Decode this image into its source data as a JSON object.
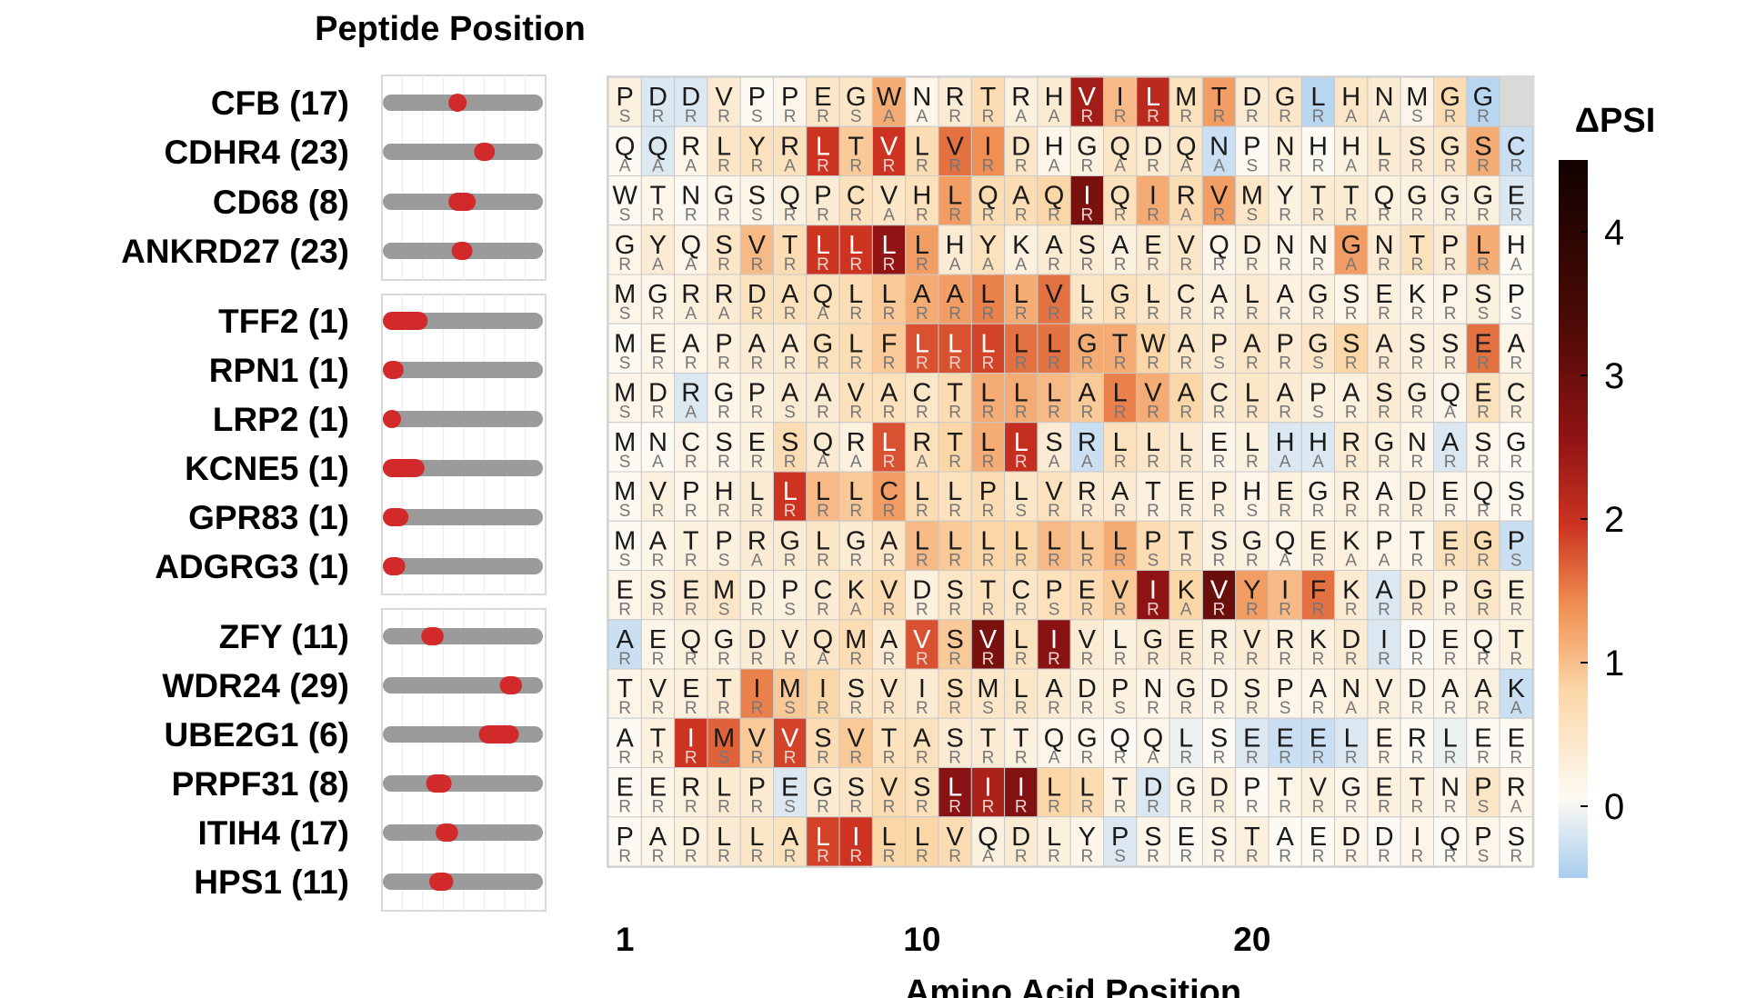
{
  "chart_data": {
    "type": "heatmap",
    "title": "Peptide Position",
    "xlabel": "Amino Acid Position",
    "x_ticks": [
      "1",
      "10",
      "20"
    ],
    "x_tick_positions": [
      1,
      10,
      20
    ],
    "colorbar": {
      "label": "ΔPSI",
      "ticks": [
        "0",
        "1",
        "2",
        "3",
        "4"
      ],
      "range": [
        -0.5,
        4.5
      ]
    },
    "panels": [
      {
        "rows": [
          {
            "label": "CFB (17)",
            "pos": [
              0.41,
              0.52
            ],
            "seq": "PDDVPPEGWNRTRHVILMTDGLHNMGG",
            "sub": "SRRRSRRSAARRAARRRRRRRRAASRR",
            "v": [
              0.2,
              -0.2,
              -0.2,
              0.3,
              0.0,
              0.1,
              0.4,
              0.4,
              1.0,
              0.1,
              0.3,
              0.6,
              0.2,
              0.3,
              2.3,
              0.9,
              2.0,
              0.5,
              1.1,
              0.3,
              0.4,
              -0.4,
              0.4,
              0.3,
              0.1,
              0.6,
              -0.4
            ]
          },
          {
            "label": "CDHR4 (23)",
            "pos": [
              0.57,
              0.7
            ],
            "seq": "QQRLYRLTVLVIDHGQDQNPNHHLSGSC",
            "sub": "AAARRARRRRRRRARARAASRRARRRRR",
            "v": [
              0.0,
              -0.2,
              0.1,
              0.4,
              0.5,
              0.5,
              1.8,
              0.8,
              1.8,
              0.6,
              1.4,
              1.2,
              0.4,
              0.1,
              0.2,
              0.4,
              0.3,
              0.4,
              -0.3,
              0.0,
              0.2,
              0.0,
              0.2,
              0.3,
              0.3,
              0.4,
              1.0,
              -0.3
            ]
          },
          {
            "label": "CD68 (8)",
            "pos": [
              0.41,
              0.58
            ],
            "seq": "WTNGSQPCVHLQAQIQIRVMYTTQGGGE",
            "sub": "SRRRSRRRARRRRRRRRARSRRRRRRRR",
            "v": [
              0.0,
              0.1,
              0.0,
              0.1,
              0.1,
              0.2,
              0.3,
              0.5,
              0.4,
              0.5,
              1.1,
              0.6,
              0.6,
              0.7,
              2.8,
              0.5,
              1.0,
              0.6,
              1.1,
              0.4,
              0.2,
              0.3,
              0.3,
              0.2,
              0.2,
              0.2,
              0.2,
              -0.2
            ]
          },
          {
            "label": "ANKRD27 (23)",
            "pos": [
              0.43,
              0.56
            ],
            "seq": "GYQSVTLLLLHYKASAEVQDNNGNTPLH",
            "sub": "RAARRRRRRRAAARRRRRRRRRARRRRA",
            "v": [
              0.1,
              0.3,
              0.1,
              0.4,
              0.9,
              0.6,
              1.8,
              1.8,
              2.5,
              1.1,
              0.3,
              0.5,
              0.2,
              0.3,
              0.3,
              0.2,
              0.3,
              0.4,
              0.1,
              0.2,
              0.1,
              0.1,
              1.1,
              0.3,
              0.5,
              0.3,
              1.0,
              0.0
            ]
          }
        ]
      },
      {
        "rows": [
          {
            "label": "TFF2 (1)",
            "pos": [
              0.0,
              0.28
            ],
            "seq": "MGRRDAQLLAALLVLGLCALAGSEKPSP",
            "sub": "SRAARRARRRRRRRRRRRRRRRRRRRSS",
            "v": [
              0.1,
              0.1,
              0.2,
              0.3,
              0.5,
              0.5,
              0.5,
              0.6,
              0.8,
              1.0,
              1.1,
              1.3,
              1.0,
              1.4,
              0.4,
              0.5,
              0.4,
              0.3,
              0.2,
              0.3,
              0.2,
              0.2,
              0.1,
              0.2,
              0.1,
              0.1,
              0.2,
              0.0
            ]
          },
          {
            "label": "RPN1 (1)",
            "pos": [
              0.0,
              0.13
            ],
            "seq": "MEAPAAGLFLLLLLGTWAPAPGSASSEA",
            "sub": "SRRRRRRRRRRRRRRRRRSRRSRRRRRR",
            "v": [
              0.0,
              0.1,
              0.1,
              0.2,
              0.3,
              0.3,
              0.5,
              0.6,
              0.8,
              1.6,
              1.6,
              1.7,
              1.4,
              1.4,
              1.0,
              1.0,
              0.7,
              0.4,
              0.3,
              0.4,
              0.3,
              0.4,
              0.7,
              0.3,
              0.2,
              0.2,
              1.4,
              0.1
            ]
          },
          {
            "label": "LRP2 (1)",
            "pos": [
              0.0,
              0.1
            ],
            "seq": "MDRGPAAVACTLLLALVACLAPASGQEC",
            "sub": "SRARRSRRRRRRRRRRRRRRRSRRRARR",
            "v": [
              0.1,
              0.1,
              -0.2,
              0.1,
              0.2,
              0.3,
              0.3,
              0.5,
              0.5,
              0.4,
              0.6,
              1.0,
              1.0,
              0.9,
              0.8,
              1.3,
              1.0,
              0.7,
              0.3,
              0.4,
              0.3,
              0.2,
              0.2,
              0.3,
              0.2,
              0.1,
              0.5,
              0.2
            ]
          },
          {
            "label": "KCNE5 (1)",
            "pos": [
              0.0,
              0.26
            ],
            "seq": "MNCSESQRLRTLLSRLLLELHHRGNASG",
            "sub": "SARRRRAARARRRAARRRRRAARRRRRR",
            "v": [
              0.0,
              0.0,
              0.1,
              0.1,
              0.2,
              0.6,
              0.3,
              0.2,
              1.6,
              0.5,
              0.7,
              1.0,
              1.9,
              0.3,
              -0.3,
              0.5,
              0.4,
              0.3,
              0.1,
              0.2,
              -0.2,
              -0.2,
              0.3,
              0.2,
              0.1,
              -0.2,
              0.1,
              0.0
            ]
          },
          {
            "label": "GPR83 (1)",
            "pos": [
              0.0,
              0.16
            ],
            "seq": "MVPHLLLLCLLPLVRATEPHEGRADEQS",
            "sub": "SRRRRRRRRRRRSRRRRRRSRRRRRRRR",
            "v": [
              0.0,
              0.2,
              0.1,
              0.2,
              0.3,
              1.8,
              0.9,
              0.8,
              1.1,
              0.6,
              0.5,
              0.6,
              0.4,
              0.5,
              0.3,
              0.3,
              0.2,
              0.2,
              0.2,
              0.1,
              0.2,
              0.1,
              0.2,
              0.1,
              0.2,
              0.1,
              0.1,
              0.0
            ]
          },
          {
            "label": "ADGRG3 (1)",
            "pos": [
              0.0,
              0.14
            ],
            "seq": "MATPRGLGALLLLLLLPTSGQEKPTEGP",
            "sub": "SRRSARRRRRRRRRRRSRRRARAARRRS",
            "v": [
              0.0,
              0.1,
              0.2,
              0.2,
              0.3,
              0.3,
              0.4,
              0.3,
              0.4,
              0.9,
              0.8,
              0.7,
              0.7,
              0.9,
              0.8,
              1.0,
              0.6,
              0.4,
              0.2,
              0.2,
              0.1,
              0.2,
              0.2,
              0.1,
              0.1,
              0.5,
              0.6,
              -0.3
            ]
          }
        ]
      },
      {
        "rows": [
          {
            "label": "ZFY (11)",
            "pos": [
              0.24,
              0.38
            ],
            "seq": "ESEMDPCKVDSTCPEVIKVYIFKADPGE",
            "sub": "RRRSRSRARRRRRSRRRARRRRRRRRRR",
            "v": [
              0.1,
              0.2,
              0.3,
              0.4,
              0.2,
              0.2,
              0.3,
              0.5,
              0.6,
              0.2,
              0.4,
              0.5,
              0.4,
              0.5,
              0.6,
              0.8,
              2.5,
              0.7,
              3.0,
              1.1,
              0.9,
              1.4,
              0.3,
              -0.2,
              0.3,
              0.2,
              0.4,
              0.2
            ]
          },
          {
            "label": "WDR24 (29)",
            "pos": [
              0.73,
              0.87
            ],
            "seq": "AEQGDVQMAVSVLIVLGERVRKDIDEQT",
            "sub": "RRRRRRARRRRRRRRRRRRRRRRRRRRR",
            "v": [
              -0.3,
              0.1,
              0.2,
              0.2,
              0.3,
              0.3,
              0.4,
              0.6,
              0.3,
              1.6,
              0.8,
              2.8,
              0.5,
              2.6,
              0.3,
              0.2,
              0.3,
              0.3,
              0.2,
              0.3,
              0.2,
              0.2,
              0.3,
              -0.2,
              0.0,
              0.1,
              0.1,
              0.2
            ]
          },
          {
            "label": "UBE2G1 (6)",
            "pos": [
              0.6,
              0.85
            ],
            "seq": "TVETIMISVISMLADPNGDSPANVDAAK",
            "sub": "RRRRRSRRRRRSRRRSRRRRSRARRRRA",
            "v": [
              0.1,
              0.2,
              0.2,
              0.3,
              1.3,
              0.8,
              0.7,
              0.4,
              0.4,
              0.3,
              0.5,
              0.4,
              0.4,
              0.3,
              0.2,
              0.2,
              0.1,
              0.2,
              0.1,
              0.2,
              0.1,
              0.1,
              0.2,
              0.2,
              0.1,
              0.1,
              0.2,
              -0.3
            ]
          },
          {
            "label": "PRPF31 (8)",
            "pos": [
              0.27,
              0.43
            ],
            "seq": "ATIMVVSVTASTTQGQQLSEEELERLEE",
            "sub": "RRRSRRRRRRRRRARRARRRRRRRRRRR",
            "v": [
              0.0,
              0.2,
              1.8,
              1.5,
              0.8,
              1.7,
              0.6,
              0.8,
              0.5,
              0.5,
              0.3,
              0.3,
              0.2,
              0.1,
              0.1,
              0.0,
              0.1,
              -0.1,
              0.0,
              -0.2,
              -0.3,
              -0.3,
              -0.2,
              0.1,
              0.0,
              -0.1,
              0.0,
              0.0
            ]
          },
          {
            "label": "ITIH4 (17)",
            "pos": [
              0.33,
              0.47
            ],
            "seq": "EERLPEGSVSLIILLTDGDPTVGETNPR",
            "sub": "RRRRRSRRRRRRRRRRRRRRRRRRRRSA",
            "v": [
              0.0,
              0.1,
              0.2,
              0.3,
              0.3,
              -0.2,
              0.3,
              0.4,
              0.6,
              0.5,
              2.6,
              2.2,
              2.7,
              0.7,
              0.6,
              0.2,
              -0.2,
              0.1,
              0.2,
              0.0,
              0.1,
              0.2,
              0.1,
              0.2,
              0.2,
              0.1,
              0.4,
              0.1
            ]
          },
          {
            "label": "HPS1 (11)",
            "pos": [
              0.29,
              0.44
            ],
            "seq": "PADLLALILLVQDLYPSESTAEDDIQPS",
            "sub": "RRRRRRRRRRRARRRSRRRRRRRRRRSR",
            "v": [
              0.0,
              0.1,
              0.2,
              0.3,
              0.4,
              0.5,
              1.7,
              1.8,
              0.7,
              0.7,
              0.6,
              0.2,
              0.3,
              0.2,
              0.1,
              -0.2,
              0.1,
              0.0,
              0.1,
              0.2,
              0.0,
              0.0,
              0.1,
              0.0,
              0.1,
              0.0,
              0.1,
              0.0
            ]
          }
        ]
      }
    ]
  }
}
